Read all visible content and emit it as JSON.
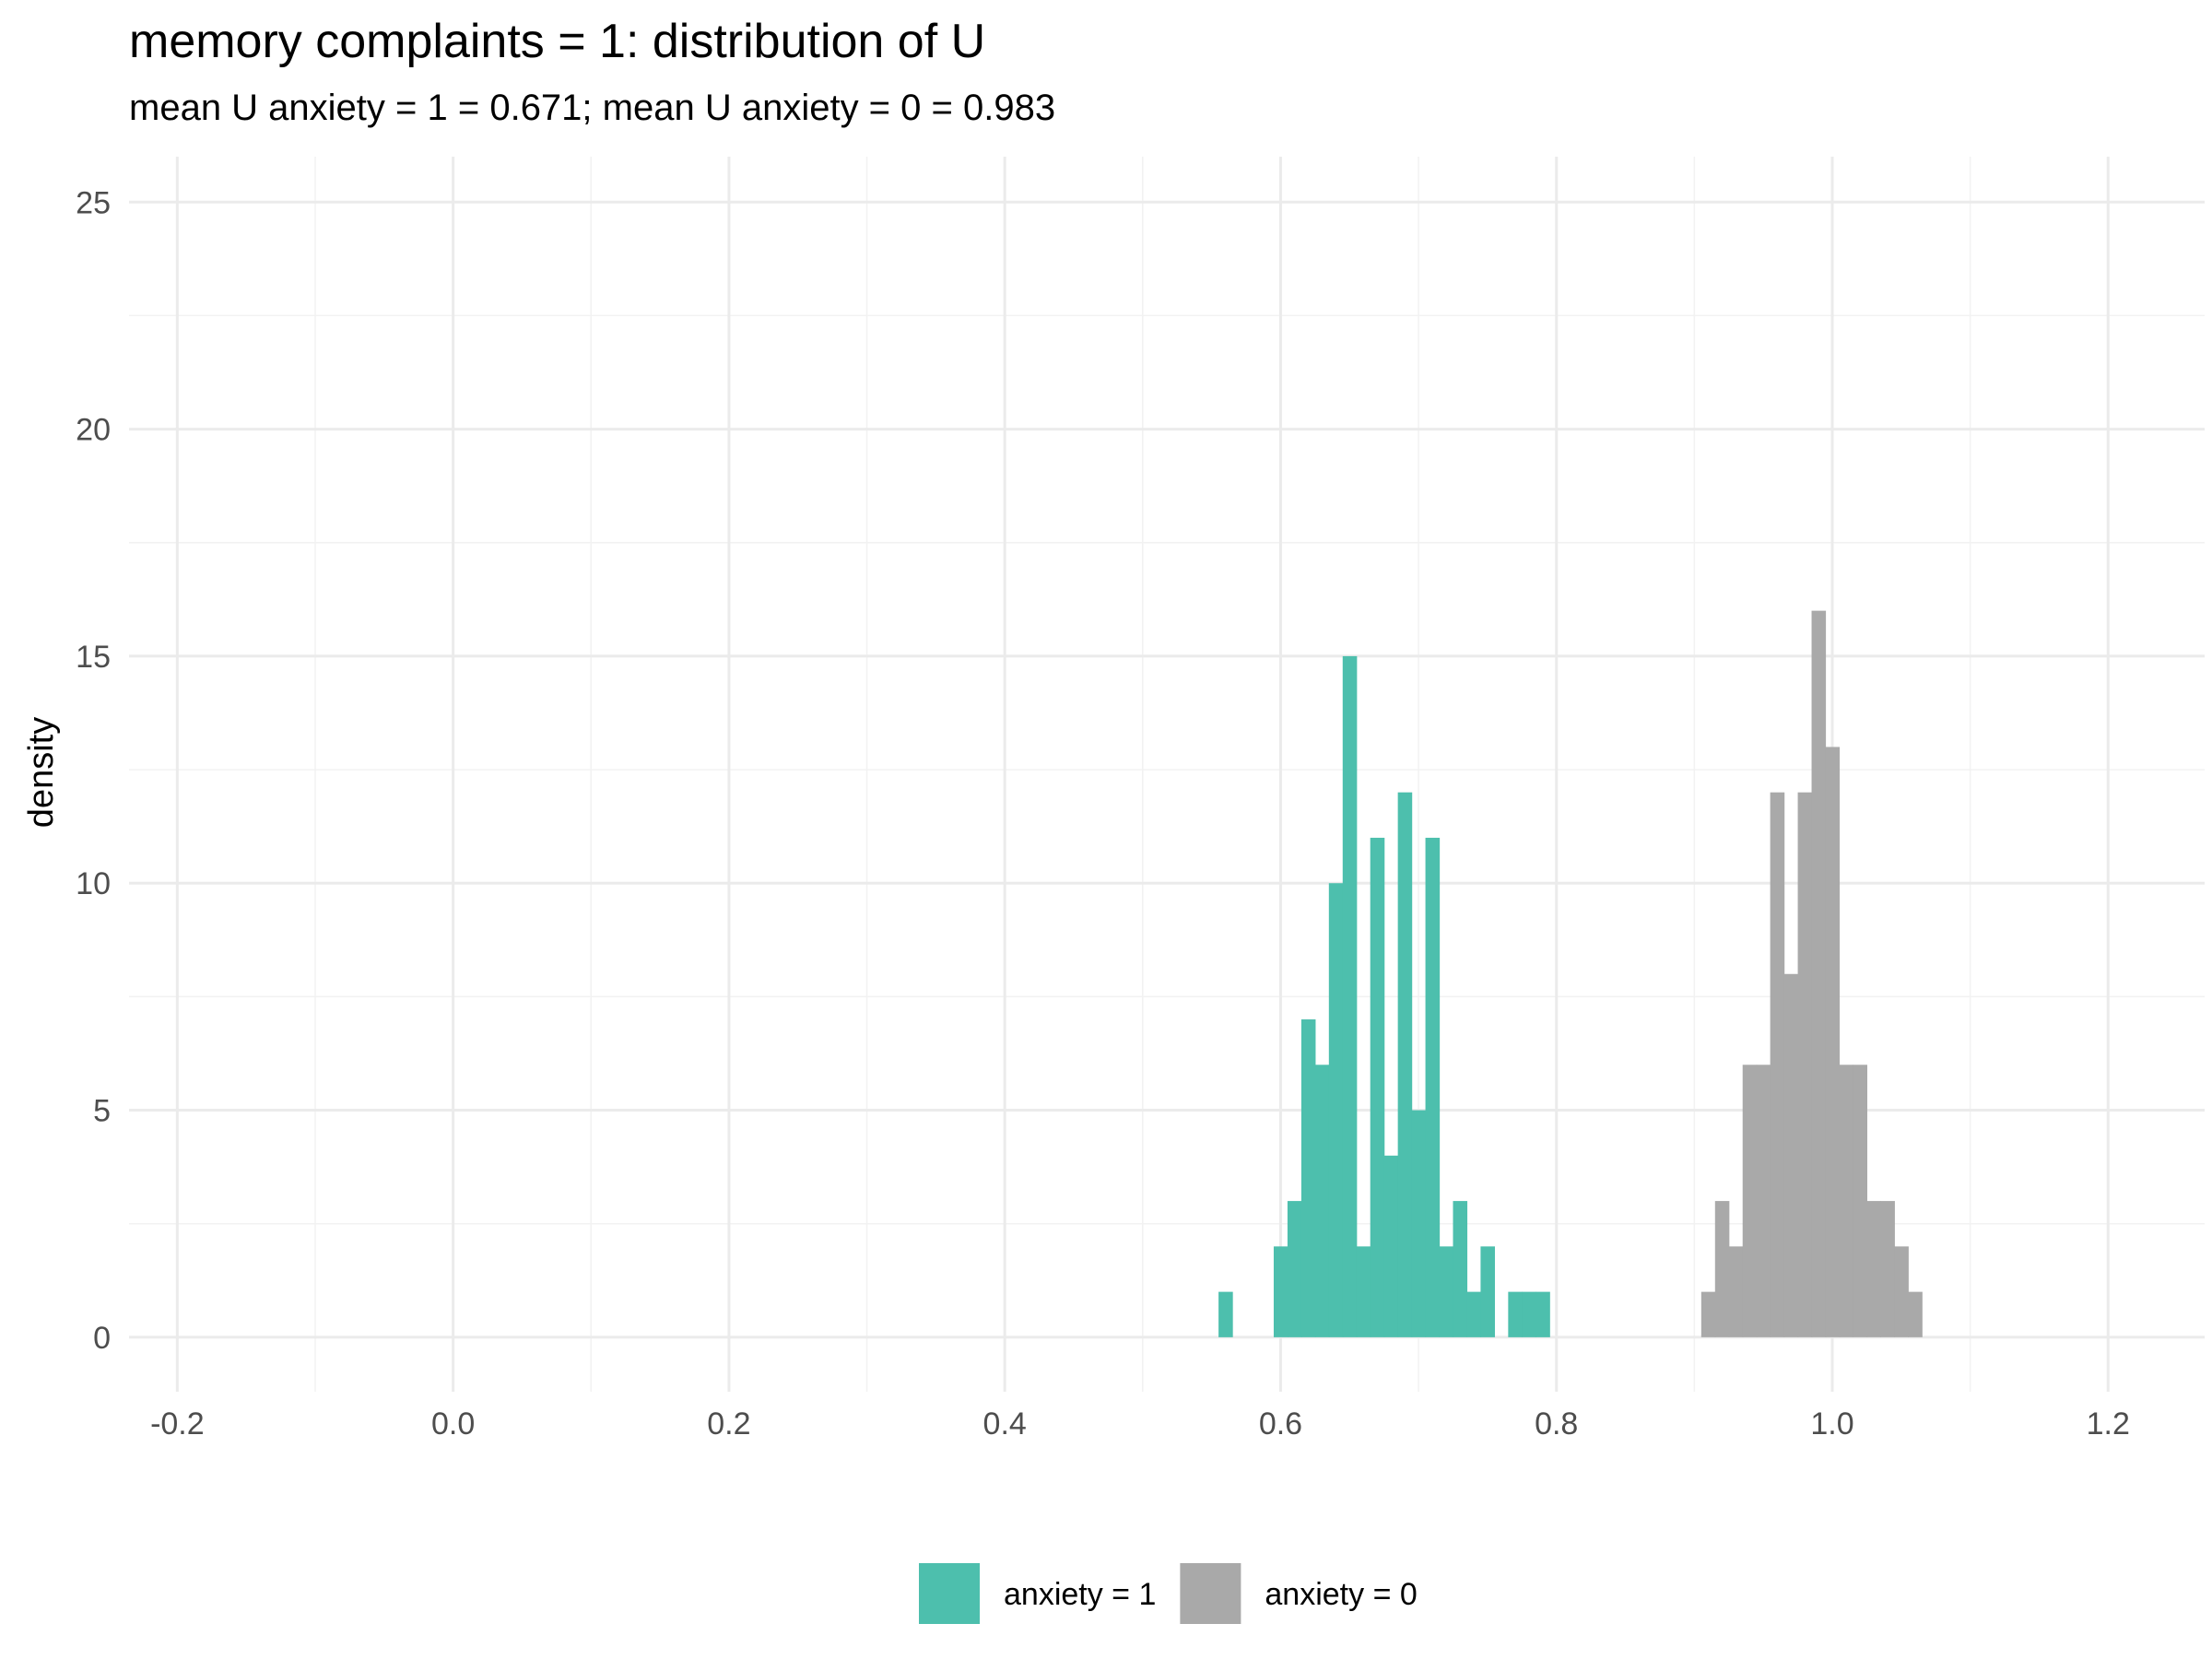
{
  "chart_data": {
    "type": "histogram",
    "title": "memory complaints = 1: distribution of U",
    "subtitle": "mean U anxiety = 1 = 0.671; mean U anxiety = 0 = 0.983",
    "xlabel": "",
    "ylabel": "density",
    "xlim": [
      -0.235,
      1.27
    ],
    "ylim": [
      -1.2,
      26
    ],
    "x_ticks": [
      -0.2,
      0.0,
      0.2,
      0.4,
      0.6,
      0.8,
      1.0,
      1.2
    ],
    "x_tick_labels": [
      "-0.2",
      "0.0",
      "0.2",
      "0.4",
      "0.6",
      "0.8",
      "1.0",
      "1.2"
    ],
    "y_ticks": [
      0,
      5,
      10,
      15,
      20,
      25
    ],
    "y_tick_labels": [
      "0",
      "5",
      "10",
      "15",
      "20",
      "25"
    ],
    "grid": true,
    "legend_position": "bottom",
    "bin_width": 0.01,
    "series": [
      {
        "name": "anxiety = 1",
        "color": "#4dbfad",
        "bins": [
          {
            "x0": 0.555,
            "y": 1
          },
          {
            "x0": 0.595,
            "y": 2
          },
          {
            "x0": 0.605,
            "y": 3
          },
          {
            "x0": 0.615,
            "y": 7
          },
          {
            "x0": 0.625,
            "y": 6
          },
          {
            "x0": 0.635,
            "y": 10
          },
          {
            "x0": 0.645,
            "y": 15
          },
          {
            "x0": 0.655,
            "y": 2
          },
          {
            "x0": 0.665,
            "y": 11
          },
          {
            "x0": 0.675,
            "y": 4
          },
          {
            "x0": 0.685,
            "y": 12
          },
          {
            "x0": 0.695,
            "y": 5
          },
          {
            "x0": 0.705,
            "y": 11
          },
          {
            "x0": 0.715,
            "y": 2
          },
          {
            "x0": 0.725,
            "y": 3
          },
          {
            "x0": 0.735,
            "y": 1
          },
          {
            "x0": 0.745,
            "y": 2
          },
          {
            "x0": 0.765,
            "y": 1
          },
          {
            "x0": 0.775,
            "y": 1
          },
          {
            "x0": 0.785,
            "y": 1
          }
        ]
      },
      {
        "name": "anxiety = 0",
        "color": "#a9a9a9",
        "bins": [
          {
            "x0": 0.905,
            "y": 1
          },
          {
            "x0": 0.915,
            "y": 3
          },
          {
            "x0": 0.925,
            "y": 2
          },
          {
            "x0": 0.935,
            "y": 6
          },
          {
            "x0": 0.945,
            "y": 6
          },
          {
            "x0": 0.955,
            "y": 12
          },
          {
            "x0": 0.965,
            "y": 8
          },
          {
            "x0": 0.975,
            "y": 12
          },
          {
            "x0": 0.985,
            "y": 16
          },
          {
            "x0": 0.995,
            "y": 13
          },
          {
            "x0": 1.005,
            "y": 6
          },
          {
            "x0": 1.015,
            "y": 6
          },
          {
            "x0": 1.025,
            "y": 3
          },
          {
            "x0": 1.035,
            "y": 3
          },
          {
            "x0": 1.045,
            "y": 2
          },
          {
            "x0": 1.055,
            "y": 1
          }
        ]
      }
    ]
  }
}
